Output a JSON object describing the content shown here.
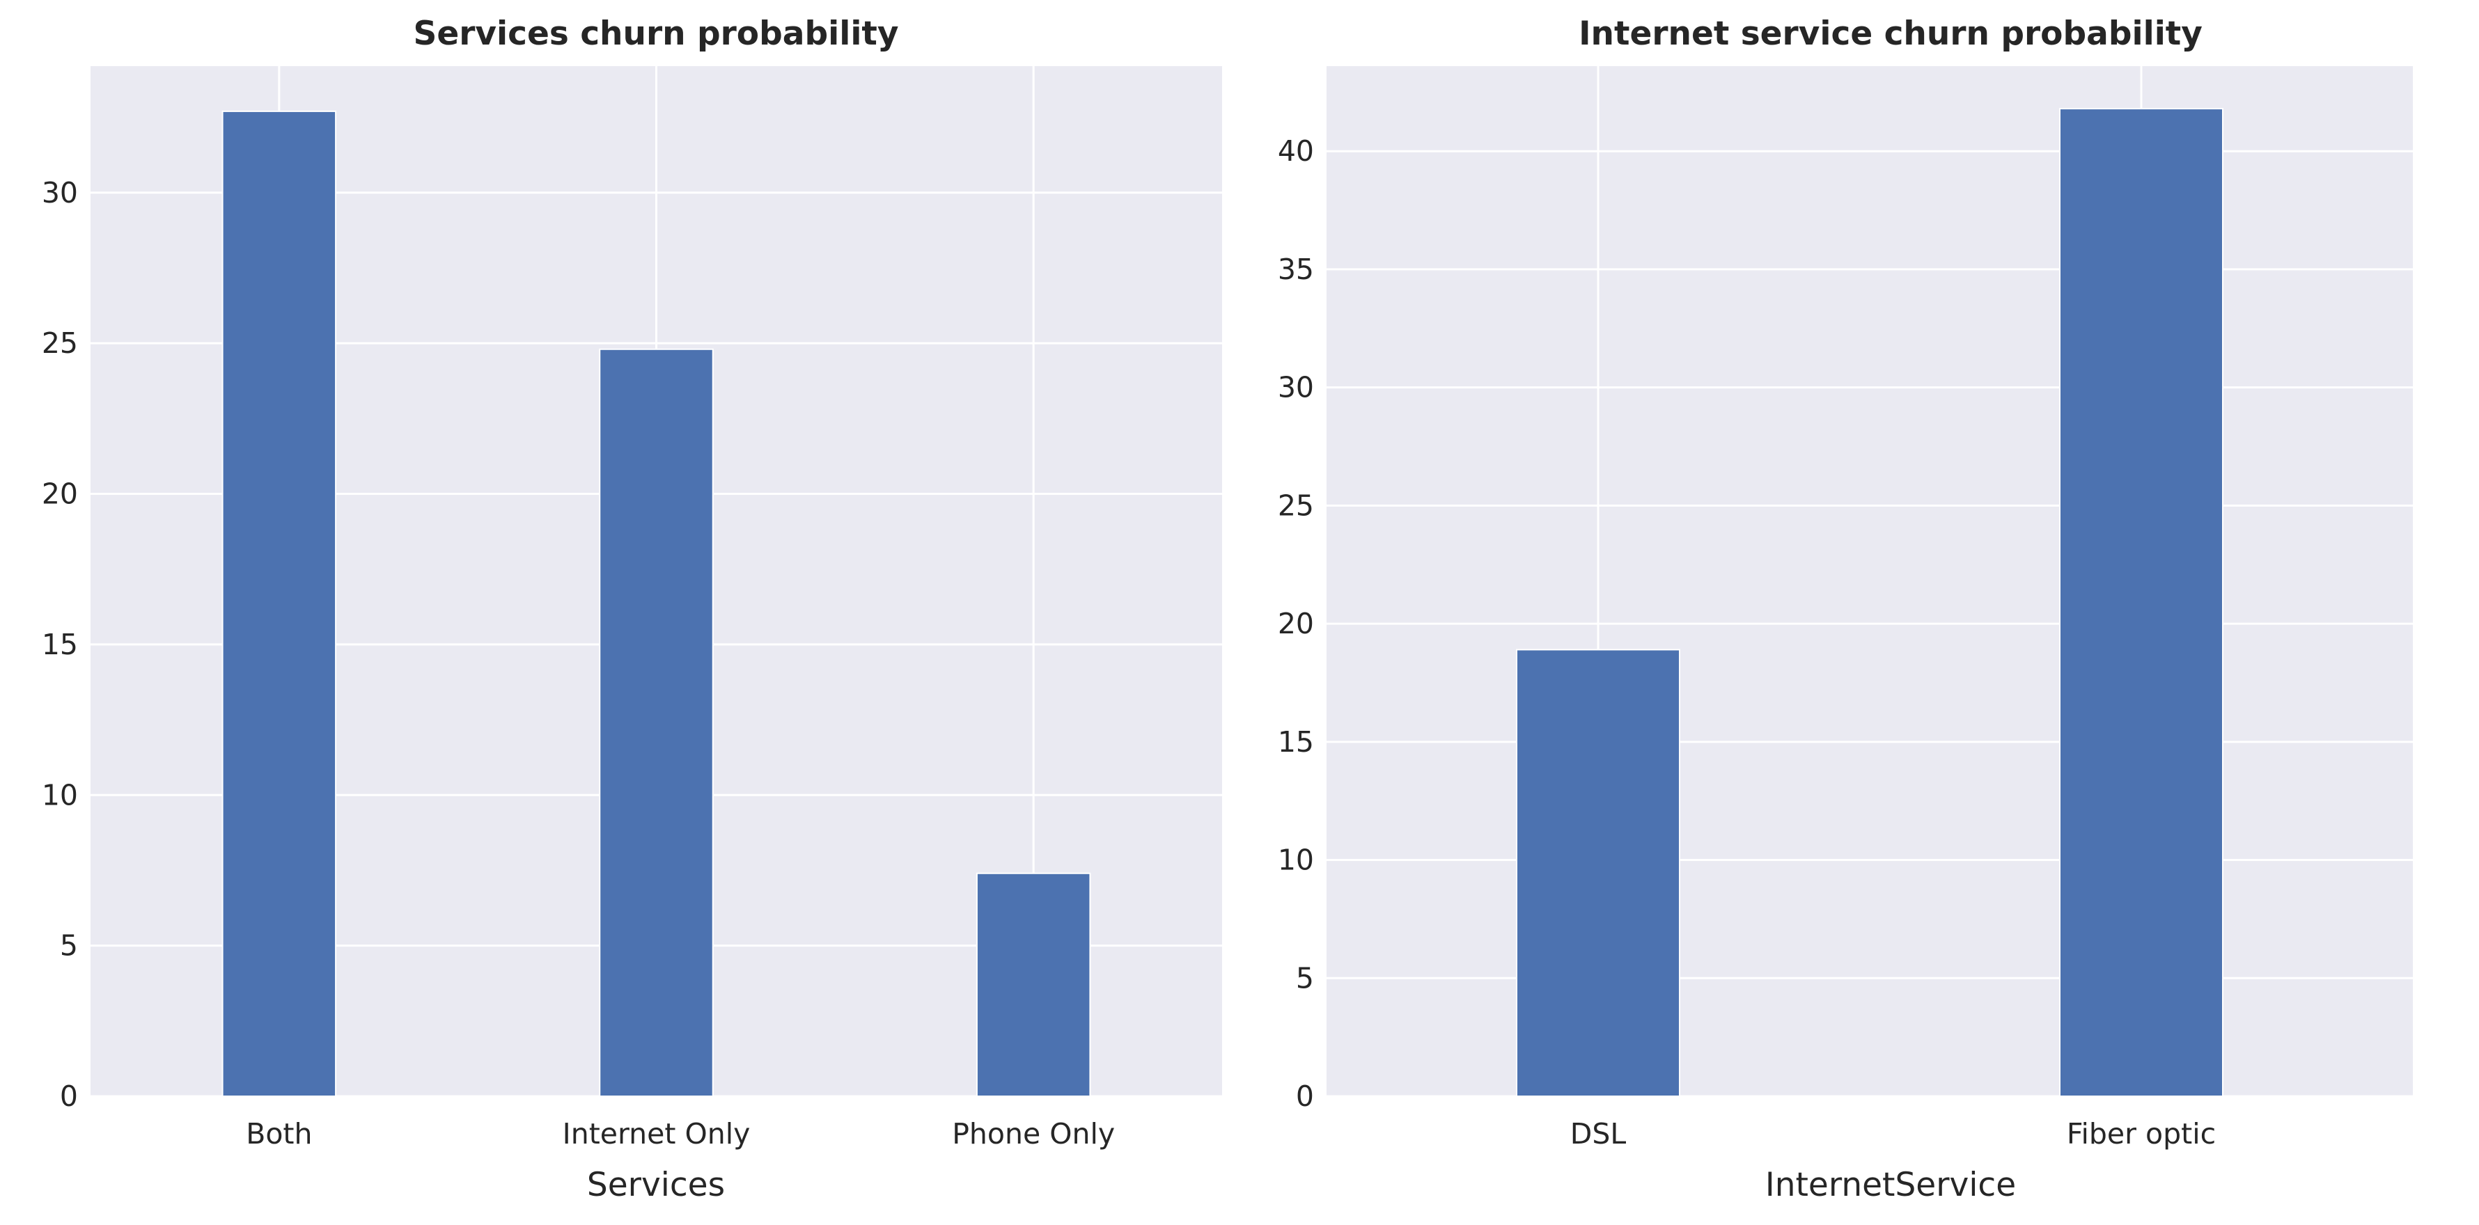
{
  "chart_data": [
    {
      "type": "bar",
      "title": "Services churn probability",
      "xlabel": "Services",
      "ylabel": "",
      "categories": [
        "Both",
        "Internet Only",
        "Phone Only"
      ],
      "values": [
        32.7,
        24.8,
        7.4
      ],
      "ylim": [
        0,
        34.2
      ],
      "yticks": [
        0,
        5,
        10,
        15,
        20,
        25,
        30
      ],
      "grid": true,
      "bar_color": "#4c72b0",
      "background_color": "#eaeaf2"
    },
    {
      "type": "bar",
      "title": "Internet service churn probability",
      "xlabel": "InternetService",
      "ylabel": "",
      "categories": [
        "DSL",
        "Fiber optic"
      ],
      "values": [
        18.9,
        41.8
      ],
      "ylim": [
        0,
        43.6
      ],
      "yticks": [
        0,
        5,
        10,
        15,
        20,
        25,
        30,
        35,
        40
      ],
      "grid": true,
      "bar_color": "#4c72b0",
      "background_color": "#eaeaf2"
    }
  ]
}
